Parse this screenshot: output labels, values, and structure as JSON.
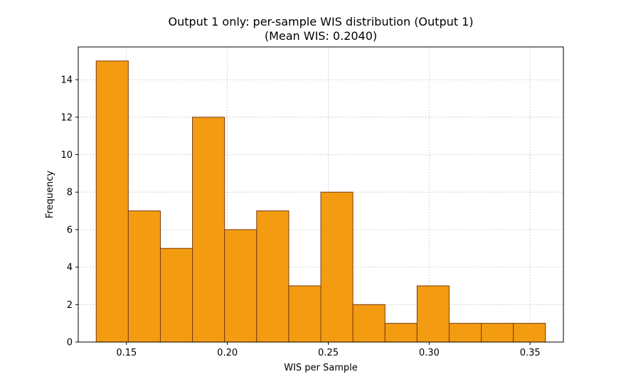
{
  "chart_data": {
    "type": "bar",
    "title": "Output 1 only: per-sample WIS distribution (Output 1)",
    "subtitle": "(Mean WIS: 0.2040)",
    "xlabel": "WIS per Sample",
    "ylabel": "Frequency",
    "bin_edges": [
      0.135,
      0.1509,
      0.1668,
      0.1827,
      0.1986,
      0.2145,
      0.2304,
      0.2463,
      0.2622,
      0.2781,
      0.294,
      0.3099,
      0.3258,
      0.3417,
      0.3576
    ],
    "values": [
      15,
      7,
      5,
      12,
      6,
      7,
      3,
      8,
      2,
      1,
      3,
      1,
      1,
      1
    ],
    "xlim": [
      0.1261,
      0.3665
    ],
    "ylim": [
      0,
      15.75
    ],
    "xticks": [
      0.15,
      0.2,
      0.25,
      0.3,
      0.35
    ],
    "xtick_labels": [
      "0.15",
      "0.20",
      "0.25",
      "0.30",
      "0.35"
    ],
    "yticks": [
      0,
      2,
      4,
      6,
      8,
      10,
      12,
      14
    ],
    "ytick_labels": [
      "0",
      "2",
      "4",
      "6",
      "8",
      "10",
      "12",
      "14"
    ],
    "grid": true,
    "bar_color": "#f39c12",
    "edge_color": "#7b3a10"
  }
}
